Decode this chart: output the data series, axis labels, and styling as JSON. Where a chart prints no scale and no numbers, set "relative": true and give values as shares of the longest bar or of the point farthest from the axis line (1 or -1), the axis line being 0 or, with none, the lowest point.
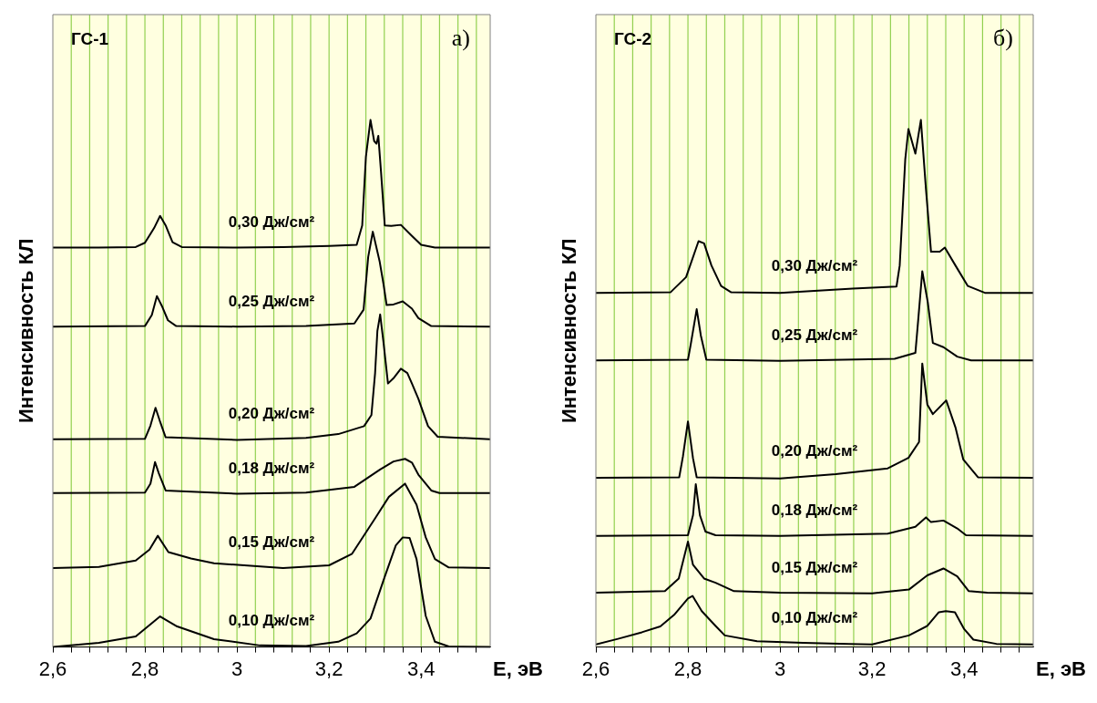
{
  "chart_data": [
    {
      "type": "line",
      "title": "ГС-1",
      "annotations": [
        "а)"
      ],
      "xlabel": "Е, эВ",
      "ylabel": "Интенсивность КЛ",
      "relative": true,
      "grid": "x",
      "marker": "none",
      "xlim": [
        2.6,
        3.55
      ],
      "xticks": [
        {
          "value": 2.6,
          "label": "2,6"
        },
        {
          "value": 2.64,
          "label": null
        },
        {
          "value": 2.68,
          "label": null
        },
        {
          "value": 2.72,
          "label": null
        },
        {
          "value": 2.76,
          "label": null
        },
        {
          "value": 2.8,
          "label": "2,8"
        },
        {
          "value": 2.84,
          "label": null
        },
        {
          "value": 2.88,
          "label": null
        },
        {
          "value": 2.92,
          "label": null
        },
        {
          "value": 2.96,
          "label": null
        },
        3,
        {
          "value": 3.04,
          "label": null
        },
        {
          "value": 3.08,
          "label": null
        },
        {
          "value": 3.12,
          "label": null
        },
        {
          "value": 3.16,
          "label": null
        },
        {
          "value": 3.2,
          "label": "3,2"
        },
        {
          "value": 3.24,
          "label": null
        },
        {
          "value": 3.28,
          "label": null
        },
        {
          "value": 3.32,
          "label": null
        },
        {
          "value": 3.36,
          "label": null
        },
        {
          "value": 3.4,
          "label": "3,4"
        },
        {
          "value": 3.44,
          "label": null
        },
        {
          "value": 3.48,
          "label": null
        },
        {
          "value": 3.52,
          "label": null
        }
      ],
      "series": [
        {
          "name": "0,30 Дж/см²",
          "color": "#000000",
          "x": [
            2.6,
            2.7,
            2.78,
            2.8,
            2.82,
            2.833,
            2.845,
            2.86,
            2.88,
            3.0,
            3.1,
            3.2,
            3.26,
            3.272,
            3.28,
            3.29,
            3.298,
            3.303,
            3.307,
            3.313,
            3.321,
            3.335,
            3.356,
            3.38,
            3.4,
            3.43,
            3.55
          ],
          "values": [
            0.758,
            0.758,
            0.759,
            0.767,
            0.795,
            0.818,
            0.8,
            0.768,
            0.759,
            0.758,
            0.759,
            0.761,
            0.763,
            0.8,
            0.93,
            1.0,
            0.96,
            0.955,
            0.97,
            0.9,
            0.8,
            0.799,
            0.801,
            0.78,
            0.763,
            0.758,
            0.758
          ]
        },
        {
          "name": "0,25 Дж/см²",
          "color": "#000000",
          "x": [
            2.6,
            2.8,
            2.815,
            2.826,
            2.838,
            2.85,
            2.868,
            3.0,
            3.15,
            3.255,
            3.275,
            3.285,
            3.295,
            3.31,
            3.318,
            3.325,
            3.34,
            3.36,
            3.38,
            3.394,
            3.422,
            3.55
          ],
          "values": [
            0.608,
            0.609,
            0.63,
            0.666,
            0.645,
            0.62,
            0.609,
            0.608,
            0.609,
            0.614,
            0.64,
            0.74,
            0.788,
            0.731,
            0.69,
            0.649,
            0.65,
            0.656,
            0.642,
            0.624,
            0.609,
            0.608
          ]
        },
        {
          "name": "0,20 Дж/см²",
          "color": "#000000",
          "x": [
            2.6,
            2.8,
            2.812,
            2.823,
            2.832,
            2.845,
            3.0,
            3.15,
            3.22,
            3.276,
            3.292,
            3.3,
            3.305,
            3.311,
            3.318,
            3.328,
            3.34,
            3.356,
            3.37,
            3.38,
            3.394,
            3.415,
            3.436,
            3.55
          ],
          "values": [
            0.394,
            0.395,
            0.42,
            0.454,
            0.43,
            0.398,
            0.393,
            0.397,
            0.404,
            0.419,
            0.44,
            0.52,
            0.6,
            0.631,
            0.58,
            0.5,
            0.51,
            0.528,
            0.52,
            0.5,
            0.471,
            0.419,
            0.399,
            0.394
          ]
        },
        {
          "name": "0,18 Дж/см²",
          "color": "#000000",
          "x": [
            2.6,
            2.8,
            2.812,
            2.822,
            2.83,
            2.845,
            3.0,
            3.15,
            3.255,
            3.311,
            3.34,
            3.365,
            3.38,
            3.394,
            3.422,
            3.44,
            3.55
          ],
          "values": [
            0.292,
            0.293,
            0.31,
            0.351,
            0.33,
            0.297,
            0.291,
            0.293,
            0.304,
            0.337,
            0.352,
            0.357,
            0.35,
            0.327,
            0.297,
            0.292,
            0.292
          ]
        },
        {
          "name": "0,15 Дж/см²",
          "color": "#000000",
          "x": [
            2.6,
            2.7,
            2.78,
            2.81,
            2.828,
            2.851,
            2.9,
            2.95,
            3.1,
            3.2,
            3.25,
            3.3,
            3.33,
            3.365,
            3.39,
            3.41,
            3.43,
            3.46,
            3.55
          ],
          "values": [
            0.15,
            0.152,
            0.164,
            0.185,
            0.211,
            0.18,
            0.168,
            0.159,
            0.15,
            0.155,
            0.177,
            0.244,
            0.285,
            0.31,
            0.27,
            0.208,
            0.167,
            0.151,
            0.15
          ]
        },
        {
          "name": "0,10 Дж/см²",
          "color": "#000000",
          "x": [
            2.6,
            2.7,
            2.78,
            2.833,
            2.87,
            2.95,
            3.05,
            3.15,
            3.22,
            3.26,
            3.29,
            3.32,
            3.345,
            3.36,
            3.375,
            3.39,
            3.41,
            3.43,
            3.46,
            3.55
          ],
          "values": [
            0.0,
            0.008,
            0.02,
            0.058,
            0.039,
            0.015,
            0.003,
            0.002,
            0.01,
            0.026,
            0.054,
            0.131,
            0.193,
            0.208,
            0.207,
            0.167,
            0.059,
            0.01,
            0.001,
            0.0
          ]
        }
      ]
    },
    {
      "type": "line",
      "title": "ГС-2",
      "annotations": [
        "б)"
      ],
      "xlabel": "Е, эВ",
      "ylabel": "Интенсивность КЛ",
      "relative": true,
      "grid": "x",
      "marker": "none",
      "xlim": [
        2.6,
        3.55
      ],
      "xticks": [
        {
          "value": 2.6,
          "label": "2,6"
        },
        {
          "value": 2.64,
          "label": null
        },
        {
          "value": 2.68,
          "label": null
        },
        {
          "value": 2.72,
          "label": null
        },
        {
          "value": 2.76,
          "label": null
        },
        {
          "value": 2.8,
          "label": "2,8"
        },
        {
          "value": 2.84,
          "label": null
        },
        {
          "value": 2.88,
          "label": null
        },
        {
          "value": 2.92,
          "label": null
        },
        {
          "value": 2.96,
          "label": null
        },
        3,
        {
          "value": 3.04,
          "label": null
        },
        {
          "value": 3.08,
          "label": null
        },
        {
          "value": 3.12,
          "label": null
        },
        {
          "value": 3.16,
          "label": null
        },
        {
          "value": 3.2,
          "label": "3,2"
        },
        {
          "value": 3.24,
          "label": null
        },
        {
          "value": 3.28,
          "label": null
        },
        {
          "value": 3.32,
          "label": null
        },
        {
          "value": 3.36,
          "label": null
        },
        {
          "value": 3.4,
          "label": "3,4"
        },
        {
          "value": 3.44,
          "label": null
        },
        {
          "value": 3.48,
          "label": null
        },
        {
          "value": 3.52,
          "label": null
        }
      ],
      "series": [
        {
          "name": "0,30 Дж/см²",
          "color": "#000000",
          "x": [
            2.6,
            2.762,
            2.796,
            2.823,
            2.835,
            2.851,
            2.872,
            2.894,
            3.0,
            3.158,
            3.253,
            3.26,
            3.272,
            3.279,
            3.294,
            3.306,
            3.317,
            3.328,
            3.347,
            3.358,
            3.381,
            3.408,
            3.445,
            3.55
          ],
          "values": [
            0.672,
            0.673,
            0.702,
            0.77,
            0.766,
            0.724,
            0.685,
            0.673,
            0.672,
            0.68,
            0.684,
            0.724,
            0.925,
            0.983,
            0.936,
            1.0,
            0.869,
            0.75,
            0.75,
            0.758,
            0.724,
            0.685,
            0.672,
            0.672
          ]
        },
        {
          "name": "0,25 Дж/см²",
          "color": "#000000",
          "x": [
            2.6,
            2.8,
            2.806,
            2.819,
            2.828,
            2.84,
            3.0,
            3.249,
            3.294,
            3.3,
            3.309,
            3.321,
            3.332,
            3.355,
            3.385,
            3.415,
            3.55
          ],
          "values": [
            0.544,
            0.545,
            0.574,
            0.641,
            0.591,
            0.545,
            0.543,
            0.547,
            0.558,
            0.619,
            0.713,
            0.654,
            0.577,
            0.569,
            0.551,
            0.544,
            0.544
          ]
        },
        {
          "name": "0,20 Дж/см²",
          "color": "#000000",
          "x": [
            2.6,
            2.781,
            2.789,
            2.8,
            2.811,
            2.819,
            3.0,
            3.121,
            3.234,
            3.279,
            3.302,
            3.309,
            3.32,
            3.332,
            3.361,
            3.381,
            3.398,
            3.43,
            3.55
          ],
          "values": [
            0.321,
            0.322,
            0.361,
            0.428,
            0.358,
            0.322,
            0.32,
            0.328,
            0.339,
            0.359,
            0.389,
            0.538,
            0.46,
            0.442,
            0.468,
            0.417,
            0.356,
            0.322,
            0.321
          ]
        },
        {
          "name": "0,18 Дж/см²",
          "color": "#000000",
          "x": [
            2.6,
            2.8,
            2.811,
            2.817,
            2.826,
            2.838,
            2.86,
            3.0,
            3.234,
            3.294,
            3.317,
            3.328,
            3.355,
            3.385,
            3.404,
            3.55
          ],
          "values": [
            0.211,
            0.212,
            0.25,
            0.309,
            0.25,
            0.219,
            0.212,
            0.211,
            0.215,
            0.228,
            0.246,
            0.237,
            0.24,
            0.225,
            0.212,
            0.211
          ]
        },
        {
          "name": "0,15 Дж/см²",
          "color": "#000000",
          "x": [
            2.6,
            2.75,
            2.78,
            2.8,
            2.811,
            2.835,
            2.86,
            2.9,
            3.0,
            3.2,
            3.28,
            3.32,
            3.355,
            3.385,
            3.41,
            3.45,
            3.55
          ],
          "values": [
            0.103,
            0.106,
            0.13,
            0.2,
            0.156,
            0.13,
            0.122,
            0.106,
            0.103,
            0.102,
            0.109,
            0.136,
            0.149,
            0.134,
            0.106,
            0.103,
            0.102
          ]
        },
        {
          "name": "0,10 Дж/см²",
          "color": "#000000",
          "x": [
            2.6,
            2.65,
            2.7,
            2.74,
            2.77,
            2.8,
            2.81,
            2.83,
            2.86,
            2.88,
            2.95,
            3.05,
            3.15,
            3.2,
            3.28,
            3.32,
            3.345,
            3.36,
            3.38,
            3.4,
            3.42,
            3.47,
            3.55
          ],
          "values": [
            0.005,
            0.016,
            0.028,
            0.039,
            0.061,
            0.092,
            0.097,
            0.068,
            0.04,
            0.022,
            0.011,
            0.008,
            0.006,
            0.005,
            0.022,
            0.04,
            0.066,
            0.068,
            0.066,
            0.034,
            0.014,
            0.006,
            0.005
          ]
        }
      ]
    }
  ]
}
